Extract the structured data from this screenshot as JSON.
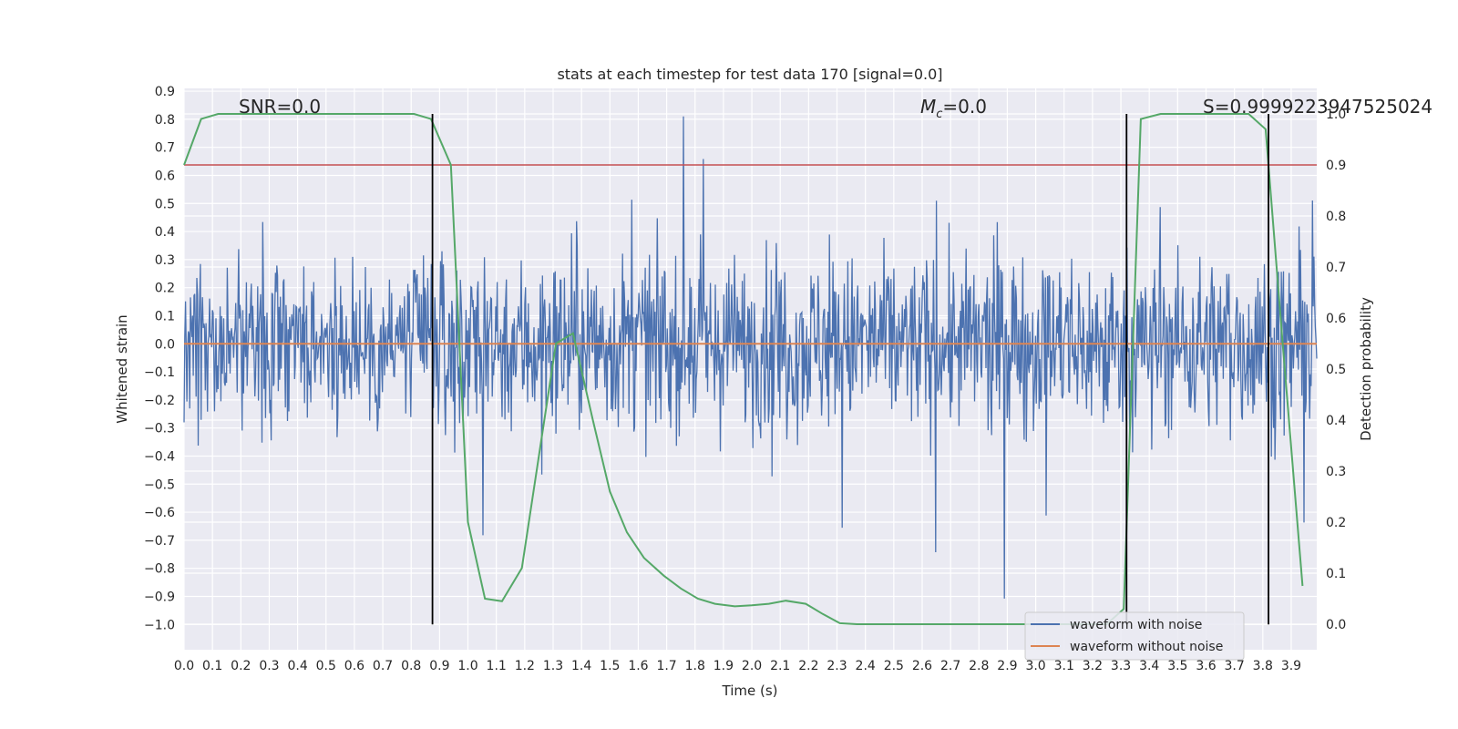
{
  "chart_data": {
    "type": "line",
    "title": "stats at each timestep for test data 170 [signal=0.0]",
    "xlabel": "Time (s)",
    "ylabel": "Whitened strain",
    "y2label": "Detection probability",
    "xlim": [
      0.0,
      3.99
    ],
    "ylim": [
      -1.09,
      0.91
    ],
    "y2lim": [
      -0.05,
      1.05
    ],
    "x_ticks": [
      "0.0",
      "0.1",
      "0.2",
      "0.3",
      "0.4",
      "0.5",
      "0.6",
      "0.7",
      "0.8",
      "0.9",
      "1.0",
      "1.1",
      "1.2",
      "1.3",
      "1.4",
      "1.5",
      "1.6",
      "1.7",
      "1.8",
      "1.9",
      "2.0",
      "2.1",
      "2.2",
      "2.3",
      "2.4",
      "2.5",
      "2.6",
      "2.7",
      "2.8",
      "2.9",
      "3.0",
      "3.1",
      "3.2",
      "3.3",
      "3.4",
      "3.5",
      "3.6",
      "3.7",
      "3.8",
      "3.9"
    ],
    "y_ticks": [
      "0.9",
      "0.8",
      "0.7",
      "0.6",
      "0.5",
      "0.4",
      "0.3",
      "0.2",
      "0.1",
      "0.0",
      "−0.1",
      "−0.2",
      "−0.3",
      "−0.4",
      "−0.5",
      "−0.6",
      "−0.7",
      "−0.8",
      "−0.9",
      "−1.0"
    ],
    "y2_ticks": [
      "1.0",
      "0.9",
      "0.8",
      "0.7",
      "0.6",
      "0.5",
      "0.4",
      "0.3",
      "0.2",
      "0.1",
      "0.0"
    ],
    "annotations": {
      "snr": "SNR=0.0",
      "mc_symbol": "M",
      "mc_sub": "c",
      "mc_value": "=0.0",
      "s": "S=0.9999223947525024"
    },
    "series": [
      {
        "name": "waveform with noise",
        "color": "#4c72b0",
        "kind": "noise",
        "amplitude_approx": [
          -1.0,
          0.81
        ]
      },
      {
        "name": "waveform without noise",
        "color": "#dd8452",
        "y": 0.0
      },
      {
        "name": "detection probability",
        "color": "#55a868",
        "axis": "y2",
        "x": [
          0.0,
          0.06,
          0.12,
          0.19,
          0.25,
          0.31,
          0.37,
          0.44,
          0.5,
          0.56,
          0.62,
          0.69,
          0.75,
          0.81,
          0.87,
          0.94,
          1.0,
          1.06,
          1.12,
          1.19,
          1.25,
          1.31,
          1.37,
          1.44,
          1.5,
          1.56,
          1.62,
          1.69,
          1.75,
          1.81,
          1.87,
          1.94,
          2.0,
          2.06,
          2.12,
          2.19,
          2.25,
          2.31,
          2.37,
          2.44,
          2.5,
          2.56,
          2.62,
          2.69,
          2.75,
          2.81,
          2.87,
          2.94,
          3.0,
          3.06,
          3.12,
          3.19,
          3.25,
          3.31,
          3.37,
          3.44,
          3.5,
          3.56,
          3.62,
          3.69,
          3.75,
          3.81,
          3.87,
          3.94
        ],
        "y": [
          0.9,
          0.99,
          1.0,
          1.0,
          1.0,
          1.0,
          1.0,
          1.0,
          1.0,
          1.0,
          1.0,
          1.0,
          1.0,
          1.0,
          0.99,
          0.9,
          0.2,
          0.05,
          0.045,
          0.11,
          0.33,
          0.55,
          0.57,
          0.4,
          0.26,
          0.18,
          0.13,
          0.095,
          0.07,
          0.05,
          0.04,
          0.035,
          0.037,
          0.04,
          0.046,
          0.04,
          0.02,
          0.002,
          0.0,
          0.0,
          0.0,
          0.0,
          0.0,
          0.0,
          0.0,
          0.0,
          0.0,
          0.0,
          0.0,
          0.0,
          0.0,
          0.0,
          0.0,
          0.03,
          0.99,
          1.0,
          1.0,
          1.0,
          1.0,
          1.0,
          1.0,
          0.97,
          0.55,
          0.075
        ]
      }
    ],
    "threshold": {
      "color": "#c44e52",
      "y2": 0.9
    },
    "vlines": {
      "color": "#000000",
      "x": [
        0.875,
        3.32,
        3.82
      ]
    },
    "legend": {
      "placement": "lower-right",
      "entries": [
        "waveform with noise",
        "waveform without noise"
      ]
    },
    "grid": true
  }
}
